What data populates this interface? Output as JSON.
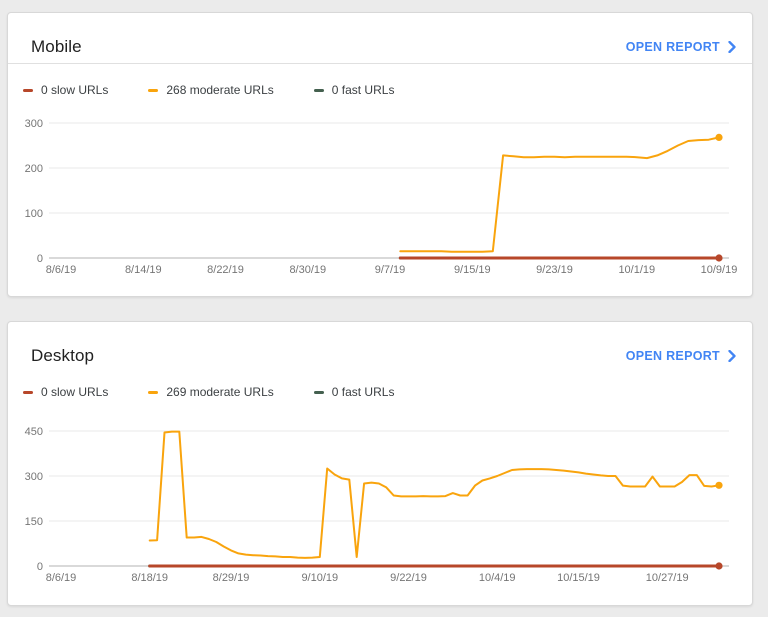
{
  "page": {
    "background": "#ebebeb"
  },
  "cards": [
    {
      "title": "Mobile",
      "open_report_label": "OPEN REPORT",
      "legend": [
        {
          "label": "0 slow URLs",
          "color": "#b7472a"
        },
        {
          "label": "268 moderate URLs",
          "color": "#f9a40d"
        },
        {
          "label": "0 fast URLs",
          "color": "#44604f"
        }
      ]
    },
    {
      "title": "Desktop",
      "open_report_label": "OPEN REPORT",
      "legend": [
        {
          "label": "0 slow URLs",
          "color": "#b7472a"
        },
        {
          "label": "269 moderate URLs",
          "color": "#f9a40d"
        },
        {
          "label": "0 fast URLs",
          "color": "#44604f"
        }
      ]
    }
  ],
  "chart_data": [
    {
      "type": "line",
      "title": "Mobile",
      "y_ticks": [
        0,
        100,
        200,
        300
      ],
      "ylim": [
        0,
        300
      ],
      "grid": true,
      "legend_position": "top",
      "x_tick_labels": [
        "8/6/19",
        "8/14/19",
        "8/22/19",
        "8/30/19",
        "9/7/19",
        "9/15/19",
        "9/23/19",
        "10/1/19",
        "10/9/19"
      ],
      "x_tick_days": [
        0,
        8,
        16,
        24,
        32,
        40,
        48,
        56,
        64
      ],
      "series": [
        {
          "name": "0 fast URLs",
          "color": "#44604f",
          "width": 3,
          "start_day": 33,
          "end_day": 64,
          "end_dot": false,
          "values": [
            0,
            0
          ]
        },
        {
          "name": "0 slow URLs",
          "color": "#b7472a",
          "width": 3,
          "start_day": 33,
          "end_day": 64,
          "end_dot": true,
          "values": [
            0,
            0
          ]
        },
        {
          "name": "268 moderate URLs",
          "color": "#f9a40d",
          "width": 2,
          "start_day": 33,
          "end_day": 64,
          "end_dot": true,
          "values": [
            15,
            15,
            15,
            15,
            15,
            14,
            14,
            14,
            14,
            15,
            228,
            226,
            224,
            224,
            225,
            225,
            224,
            225,
            225,
            225,
            225,
            225,
            225,
            224,
            222,
            228,
            238,
            250,
            260,
            262,
            263,
            268
          ]
        }
      ]
    },
    {
      "type": "line",
      "title": "Desktop",
      "y_ticks": [
        0,
        150,
        300,
        450
      ],
      "ylim": [
        0,
        450
      ],
      "grid": true,
      "legend_position": "top",
      "x_tick_labels": [
        "8/6/19",
        "8/18/19",
        "8/29/19",
        "9/10/19",
        "9/22/19",
        "10/4/19",
        "10/15/19",
        "10/27/19"
      ],
      "x_tick_days": [
        0,
        12,
        23,
        35,
        47,
        59,
        70,
        82
      ],
      "series": [
        {
          "name": "0 fast URLs",
          "color": "#44604f",
          "width": 3,
          "start_day": 12,
          "end_day": 89,
          "end_dot": false,
          "values": [
            0,
            0
          ]
        },
        {
          "name": "0 slow URLs",
          "color": "#b7472a",
          "width": 3,
          "start_day": 12,
          "end_day": 89,
          "end_dot": true,
          "values": [
            0,
            0
          ]
        },
        {
          "name": "269 moderate URLs",
          "color": "#f9a40d",
          "width": 2,
          "start_day": 12,
          "end_day": 89,
          "end_dot": true,
          "values": [
            85,
            86,
            445,
            448,
            448,
            95,
            95,
            97,
            90,
            80,
            65,
            52,
            42,
            38,
            36,
            35,
            33,
            32,
            30,
            30,
            28,
            27,
            28,
            30,
            325,
            305,
            292,
            288,
            30,
            275,
            278,
            275,
            262,
            235,
            232,
            232,
            232,
            233,
            232,
            232,
            233,
            243,
            235,
            235,
            268,
            285,
            292,
            300,
            310,
            320,
            322,
            323,
            323,
            323,
            322,
            320,
            318,
            315,
            312,
            308,
            305,
            302,
            300,
            300,
            268,
            265,
            265,
            265,
            298,
            265,
            265,
            265,
            280,
            303,
            303,
            267,
            265,
            269
          ]
        }
      ]
    }
  ]
}
